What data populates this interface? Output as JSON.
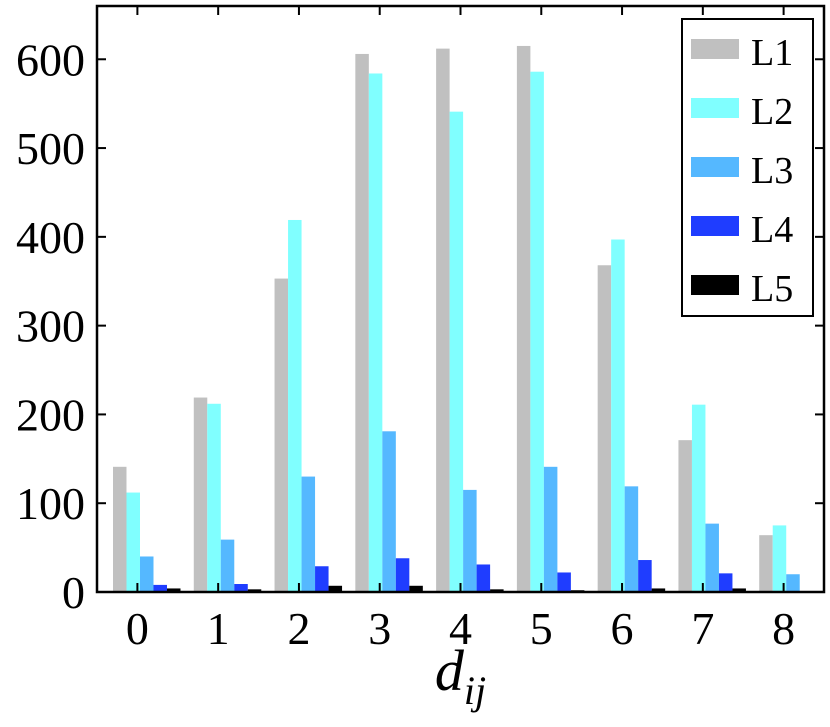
{
  "chart_data": {
    "type": "bar",
    "title": "",
    "xlabel": "d",
    "xlabel_subscript": "ij",
    "ylabel": "",
    "categories": [
      "0",
      "1",
      "2",
      "3",
      "4",
      "5",
      "6",
      "7",
      "8"
    ],
    "ylim": [
      0,
      660
    ],
    "yticks": [
      0,
      100,
      200,
      300,
      400,
      500,
      600
    ],
    "grid": false,
    "legend_position": "top-right",
    "series": [
      {
        "name": "L1",
        "color": "#c0c0c0",
        "values": [
          141,
          219,
          353,
          606,
          612,
          615,
          368,
          171,
          64
        ]
      },
      {
        "name": "L2",
        "color": "#80ffff",
        "values": [
          112,
          212,
          419,
          584,
          541,
          586,
          397,
          211,
          75
        ]
      },
      {
        "name": "L3",
        "color": "#55b8ff",
        "values": [
          40,
          59,
          130,
          181,
          115,
          141,
          119,
          77,
          20
        ]
      },
      {
        "name": "L4",
        "color": "#1f3dff",
        "values": [
          8,
          9,
          29,
          38,
          31,
          22,
          36,
          21,
          0
        ]
      },
      {
        "name": "L5",
        "color": "#000000",
        "values": [
          4,
          3,
          7,
          7,
          3,
          2,
          4,
          4,
          0
        ]
      }
    ]
  }
}
